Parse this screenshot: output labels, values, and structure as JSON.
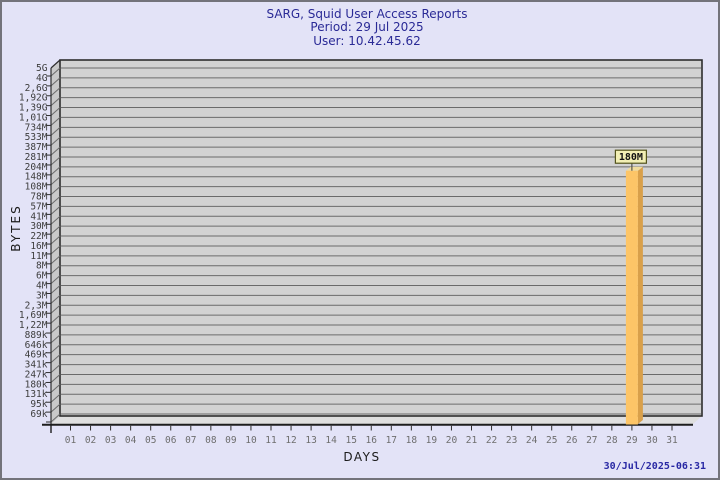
{
  "page": {
    "background": "#e3e3f7",
    "border_color": "#73737b"
  },
  "header": {
    "title": "SARG, Squid User Access Reports",
    "period": "Period: 29 Jul 2025",
    "user": "User: 10.42.45.62"
  },
  "footer": {
    "timestamp": "30/Jul/2025-06:31"
  },
  "chart_data": {
    "type": "bar",
    "title": "SARG, Squid User Access Reports",
    "subtitle_period": "Period: 29 Jul 2025",
    "subtitle_user": "User: 10.42.45.62",
    "xlabel": "DAYS",
    "ylabel": "BYTES",
    "y_scale": "logarithmic",
    "grid": "horizontal",
    "legend": null,
    "y_tick_labels": [
      "5G",
      "4G",
      "2,6G",
      "1,92G",
      "1,39G",
      "1,01G",
      "734M",
      "533M",
      "387M",
      "281M",
      "204M",
      "148M",
      "108M",
      "78M",
      "57M",
      "41M",
      "30M",
      "22M",
      "16M",
      "11M",
      "8M",
      "6M",
      "4M",
      "3M",
      "2,3M",
      "1,69M",
      "1,22M",
      "889k",
      "646k",
      "469k",
      "341k",
      "247k",
      "180k",
      "131k",
      "95k",
      "69k"
    ],
    "x_tick_labels": [
      "01",
      "02",
      "03",
      "04",
      "05",
      "06",
      "07",
      "08",
      "09",
      "10",
      "11",
      "12",
      "13",
      "14",
      "15",
      "16",
      "17",
      "18",
      "19",
      "20",
      "21",
      "22",
      "23",
      "24",
      "25",
      "26",
      "27",
      "28",
      "29",
      "30",
      "31"
    ],
    "values_bytes": [
      0,
      0,
      0,
      0,
      0,
      0,
      0,
      0,
      0,
      0,
      0,
      0,
      0,
      0,
      0,
      0,
      0,
      0,
      0,
      0,
      0,
      0,
      0,
      0,
      0,
      0,
      0,
      0,
      180000000,
      0,
      0
    ],
    "bars": [
      {
        "day": "29",
        "value_label": "180M"
      }
    ],
    "colors": {
      "plot_bg": "#d2d2d2",
      "wall": "#c9c9c9",
      "floor": "#dfdfdf",
      "grid": "#6b6b6b",
      "frame": "#2e2e2e",
      "axis_line": "#1d1d1d",
      "tick_text": "#3d3d3d",
      "day_text": "#6e6e6e",
      "bar_front": "#fdc567",
      "bar_side": "#d9a04a",
      "bar_top": "#f0dc9e",
      "note_bg": "#f2efb4",
      "note_border": "#54541c",
      "note_text": "#101010",
      "title_text": "#2a2a96",
      "timestamp_text": "#2828a4"
    }
  }
}
